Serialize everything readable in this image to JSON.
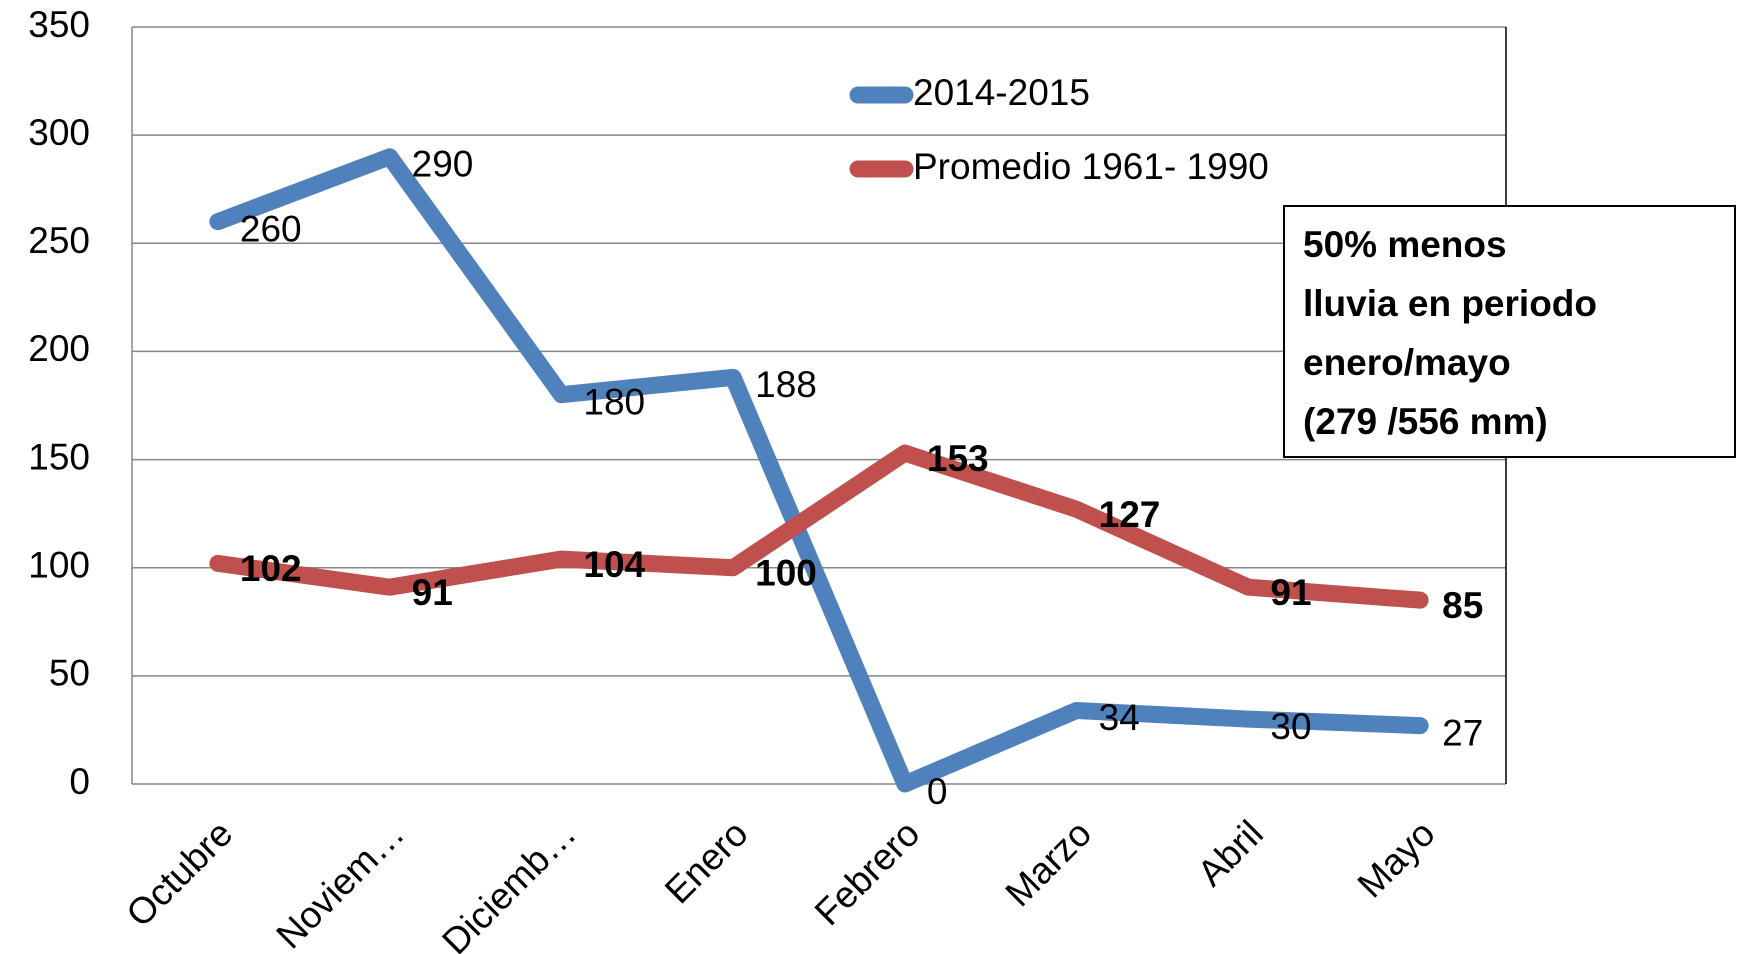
{
  "chart_data": {
    "type": "line",
    "categories": [
      "Octubre",
      "Noviem…",
      "Diciemb…",
      "Enero",
      "Febrero",
      "Marzo",
      "Abril",
      "Mayo"
    ],
    "series": [
      {
        "name": "2014-2015",
        "color": "#4f81bd",
        "values": [
          260,
          290,
          180,
          188,
          0,
          34,
          30,
          27
        ]
      },
      {
        "name": "Promedio  1961- 1990",
        "color": "#c0504d",
        "values": [
          102,
          91,
          104,
          100,
          153,
          127,
          91,
          85
        ]
      }
    ],
    "ylim": [
      0,
      350
    ],
    "yticks": [
      0,
      50,
      100,
      150,
      200,
      250,
      300,
      350
    ],
    "grid": true,
    "annotation": [
      "50% menos",
      " lluvia en periodo",
      "enero/mayo",
      "(279 /556 mm)"
    ]
  }
}
